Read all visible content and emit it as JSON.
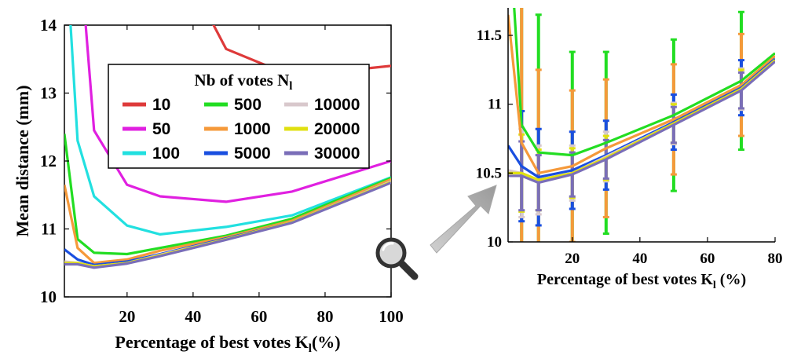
{
  "chart_data": [
    {
      "type": "line",
      "xlabel": "Percentage of best votes K",
      "xlabel_sub": "l",
      "xlabel_tail": "(%)",
      "ylabel": "Mean distance (mm)",
      "xlim": [
        1,
        100
      ],
      "ylim": [
        10,
        14
      ],
      "xticks": [
        20,
        40,
        60,
        80,
        100
      ],
      "yticks": [
        10,
        11,
        12,
        13,
        14
      ],
      "x": [
        1,
        5,
        10,
        20,
        30,
        50,
        70,
        100
      ],
      "legend": {
        "title": "Nb of votes N",
        "title_sub": "l",
        "placement": "top-center",
        "columns": [
          [
            "10",
            "50",
            "100"
          ],
          [
            "500",
            "1000",
            "5000"
          ],
          [
            "10000",
            "20000",
            "30000"
          ]
        ]
      },
      "series": [
        {
          "name": "10",
          "color": "#de3a3a",
          "x": [
            30,
            50,
            70,
            100
          ],
          "values": [
            15.5,
            13.65,
            13.25,
            13.4
          ]
        },
        {
          "name": "50",
          "color": "#e020e0",
          "x": [
            5,
            10,
            20,
            30,
            50,
            70,
            100
          ],
          "values": [
            15.5,
            12.45,
            11.65,
            11.48,
            11.4,
            11.55,
            12.0
          ]
        },
        {
          "name": "100",
          "color": "#22e0e0",
          "x": [
            1,
            5,
            10,
            20,
            30,
            50,
            70,
            100
          ],
          "values": [
            15.5,
            12.3,
            11.48,
            11.05,
            10.92,
            11.03,
            11.2,
            11.76
          ]
        },
        {
          "name": "500",
          "color": "#22dd22",
          "x": [
            1,
            5,
            10,
            20,
            30,
            50,
            70,
            100
          ],
          "values": [
            12.4,
            10.85,
            10.65,
            10.63,
            10.72,
            10.9,
            11.15,
            11.75
          ]
        },
        {
          "name": "1000",
          "color": "#f5993a",
          "x": [
            1,
            5,
            10,
            20,
            30,
            50,
            70,
            100
          ],
          "values": [
            11.65,
            10.72,
            10.5,
            10.55,
            10.68,
            10.88,
            11.12,
            11.73
          ]
        },
        {
          "name": "5000",
          "color": "#1a4fe0",
          "x": [
            1,
            5,
            10,
            20,
            30,
            50,
            70,
            100
          ],
          "values": [
            10.7,
            10.55,
            10.47,
            10.52,
            10.63,
            10.86,
            11.1,
            11.7
          ]
        },
        {
          "name": "10000",
          "color": "#d8c8cc",
          "x": [
            1,
            5,
            10,
            20,
            30,
            50,
            70,
            100
          ],
          "values": [
            10.52,
            10.5,
            10.45,
            10.5,
            10.62,
            10.85,
            11.1,
            11.7
          ]
        },
        {
          "name": "20000",
          "color": "#e0e010",
          "x": [
            1,
            5,
            10,
            20,
            30,
            50,
            70,
            100
          ],
          "values": [
            10.5,
            10.5,
            10.45,
            10.5,
            10.61,
            10.85,
            11.1,
            11.69
          ]
        },
        {
          "name": "30000",
          "color": "#7a6eb8",
          "x": [
            1,
            5,
            10,
            20,
            30,
            50,
            70,
            100
          ],
          "values": [
            10.48,
            10.48,
            10.43,
            10.49,
            10.6,
            10.84,
            11.09,
            11.68
          ]
        }
      ]
    },
    {
      "type": "line",
      "xlabel": "Percentage of best votes K",
      "xlabel_sub": "l",
      "xlabel_tail": " (%)",
      "ylabel": "",
      "xlim": [
        1,
        80
      ],
      "ylim": [
        10,
        11.7
      ],
      "xticks": [
        20,
        40,
        60,
        80
      ],
      "yticks": [
        10,
        10.5,
        11,
        11.5
      ],
      "ytick_labels": [
        "10",
        "10.5",
        "11",
        "11.5"
      ],
      "series": [
        {
          "name": "500",
          "color": "#22dd22",
          "x": [
            1,
            5,
            10,
            20,
            30,
            50,
            70,
            80
          ],
          "values": [
            12.4,
            10.85,
            10.65,
            10.63,
            10.72,
            10.92,
            11.17,
            11.37
          ],
          "err": [
            0,
            0.9,
            1.0,
            0.75,
            0.66,
            0.55,
            0.5,
            0
          ]
        },
        {
          "name": "1000",
          "color": "#f5993a",
          "x": [
            1,
            5,
            10,
            20,
            30,
            50,
            70,
            80
          ],
          "values": [
            11.65,
            10.72,
            10.5,
            10.55,
            10.68,
            10.89,
            11.14,
            11.35
          ],
          "err": [
            0,
            1.0,
            0.75,
            0.55,
            0.5,
            0.4,
            0.37,
            0
          ]
        },
        {
          "name": "5000",
          "color": "#1a4fe0",
          "x": [
            1,
            5,
            10,
            20,
            30,
            50,
            70,
            80
          ],
          "values": [
            10.7,
            10.55,
            10.47,
            10.52,
            10.63,
            10.87,
            11.12,
            11.33
          ],
          "err": [
            0,
            0.4,
            0.35,
            0.28,
            0.25,
            0.2,
            0.2,
            0
          ]
        },
        {
          "name": "10000",
          "color": "#d8c8cc",
          "x": [
            1,
            5,
            10,
            20,
            30,
            50,
            70,
            80
          ],
          "values": [
            10.52,
            10.5,
            10.45,
            10.5,
            10.62,
            10.86,
            11.11,
            11.32
          ],
          "err": [
            0,
            0.32,
            0.25,
            0.2,
            0.18,
            0.15,
            0.15,
            0
          ]
        },
        {
          "name": "20000",
          "color": "#e0e010",
          "x": [
            1,
            5,
            10,
            20,
            30,
            50,
            70,
            80
          ],
          "values": [
            10.5,
            10.5,
            10.45,
            10.5,
            10.61,
            10.86,
            11.11,
            11.32
          ],
          "err": [
            0,
            0.28,
            0.22,
            0.18,
            0.16,
            0.14,
            0.14,
            0
          ]
        },
        {
          "name": "30000",
          "color": "#7a6eb8",
          "x": [
            1,
            5,
            10,
            20,
            30,
            50,
            70,
            80
          ],
          "values": [
            10.48,
            10.48,
            10.43,
            10.49,
            10.6,
            10.85,
            11.1,
            11.31
          ],
          "err": [
            0,
            0.25,
            0.2,
            0.16,
            0.14,
            0.13,
            0.13,
            0
          ]
        }
      ]
    }
  ],
  "zoom_icon": "magnifier-icon",
  "zoom_arrow_color": "#a8a8a8"
}
